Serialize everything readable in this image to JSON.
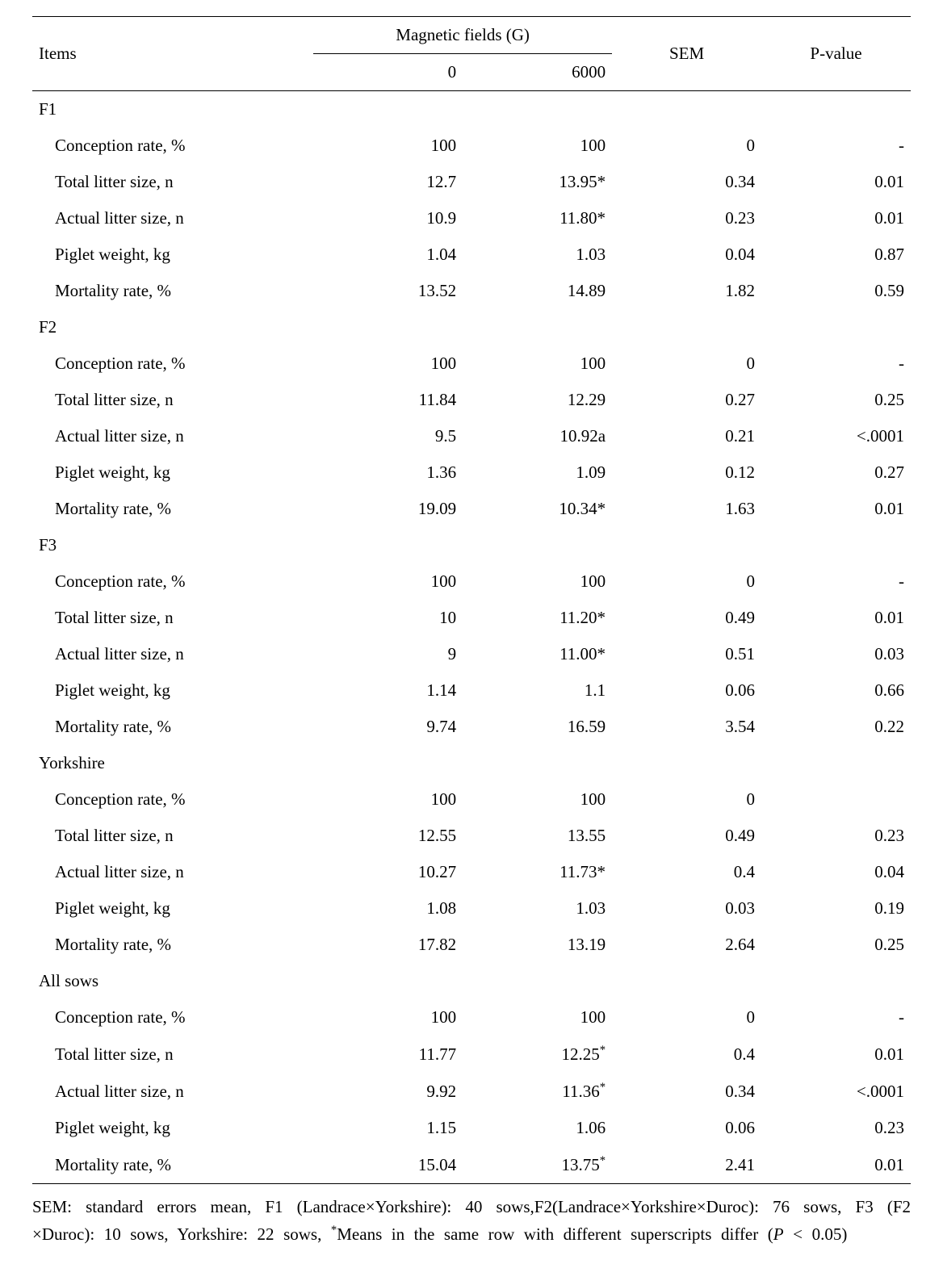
{
  "colors": {
    "background": "#ffffff",
    "text": "#000000",
    "rule": "#000000"
  },
  "typography": {
    "family": "Times New Roman",
    "body_size_pt": 16,
    "footnote_size_pt": 16
  },
  "header": {
    "items": "Items",
    "magnetic": "Magnetic fields (G)",
    "m0": "0",
    "m6000": "6000",
    "sem": "SEM",
    "pvalue": "P-value"
  },
  "sections": [
    {
      "name": "F1",
      "rows": [
        {
          "label": "Conception rate, %",
          "v0": "100",
          "v6000": "100",
          "sem": "0",
          "p": "-"
        },
        {
          "label": "Total litter size, n",
          "v0": "12.7",
          "v6000": "13.95*",
          "sem": "0.34",
          "p": "0.01"
        },
        {
          "label": "Actual litter size, n",
          "v0": "10.9",
          "v6000": "11.80*",
          "sem": "0.23",
          "p": "0.01"
        },
        {
          "label": "Piglet weight, kg",
          "v0": "1.04",
          "v6000": "1.03",
          "sem": "0.04",
          "p": "0.87"
        },
        {
          "label": "Mortality rate, %",
          "v0": "13.52",
          "v6000": "14.89",
          "sem": "1.82",
          "p": "0.59"
        }
      ]
    },
    {
      "name": "F2",
      "rows": [
        {
          "label": "Conception rate, %",
          "v0": "100",
          "v6000": "100",
          "sem": "0",
          "p": "-"
        },
        {
          "label": "Total litter size, n",
          "v0": "11.84",
          "v6000": "12.29",
          "sem": "0.27",
          "p": "0.25"
        },
        {
          "label": "Actual litter size, n",
          "v0": "9.5",
          "v6000": "10.92a",
          "sem": "0.21",
          "p": "<.0001"
        },
        {
          "label": "Piglet weight, kg",
          "v0": "1.36",
          "v6000": "1.09",
          "sem": "0.12",
          "p": "0.27"
        },
        {
          "label": "Mortality rate, %",
          "v0": "19.09",
          "v6000": "10.34*",
          "sem": "1.63",
          "p": "0.01"
        }
      ]
    },
    {
      "name": "F3",
      "rows": [
        {
          "label": "Conception rate, %",
          "v0": "100",
          "v6000": "100",
          "sem": "0",
          "p": "-"
        },
        {
          "label": "Total litter size, n",
          "v0": "10",
          "v6000": "11.20*",
          "sem": "0.49",
          "p": "0.01"
        },
        {
          "label": "Actual litter size, n",
          "v0": "9",
          "v6000": "11.00*",
          "sem": "0.51",
          "p": "0.03"
        },
        {
          "label": "Piglet weight, kg",
          "v0": "1.14",
          "v6000": "1.1",
          "sem": "0.06",
          "p": "0.66"
        },
        {
          "label": "Mortality rate, %",
          "v0": "9.74",
          "v6000": "16.59",
          "sem": "3.54",
          "p": "0.22"
        }
      ]
    },
    {
      "name": "Yorkshire",
      "rows": [
        {
          "label": "Conception rate, %",
          "v0": "100",
          "v6000": "100",
          "sem": "0",
          "p": ""
        },
        {
          "label": "Total litter size, n",
          "v0": "12.55",
          "v6000": "13.55",
          "sem": "0.49",
          "p": "0.23"
        },
        {
          "label": "Actual litter size, n",
          "v0": "10.27",
          "v6000": "11.73*",
          "sem": "0.4",
          "p": "0.04"
        },
        {
          "label": "Piglet weight, kg",
          "v0": "1.08",
          "v6000": "1.03",
          "sem": "0.03",
          "p": "0.19"
        },
        {
          "label": "Mortality rate, %",
          "v0": "17.82",
          "v6000": "13.19",
          "sem": "2.64",
          "p": "0.25"
        }
      ]
    },
    {
      "name": "All sows",
      "rows": [
        {
          "label": "Conception rate, %",
          "v0": "100",
          "v6000": "100",
          "sem": "0",
          "p": "-"
        },
        {
          "label": "Total litter size, n",
          "v0": "11.77",
          "v6000_html": "12.25<sup>*</sup>",
          "sem": "0.4",
          "p": "0.01"
        },
        {
          "label": "Actual litter size, n",
          "v0": "9.92",
          "v6000_html": "11.36<sup>*</sup>",
          "sem": "0.34",
          "p": "<.0001"
        },
        {
          "label": "Piglet weight, kg",
          "v0": "1.15",
          "v6000": "1.06",
          "sem": "0.06",
          "p": "0.23"
        },
        {
          "label": "Mortality rate, %",
          "v0": "15.04",
          "v6000_html": "13.75<sup>*</sup>",
          "sem": "2.41",
          "p": "0.01"
        }
      ]
    }
  ],
  "footnote_html": "SEM: standard errors mean, F1 (Landrace×Yorkshire): 40 sows,F2(Landrace×Yorkshire×Duroc): 76 sows, F3 (F2 ×Duroc): 10 sows, Yorkshire: 22 sows, <sup>*</sup>Means in the same row with different superscripts differ (<span class=\"ital\">P</span> &lt; 0.05)"
}
